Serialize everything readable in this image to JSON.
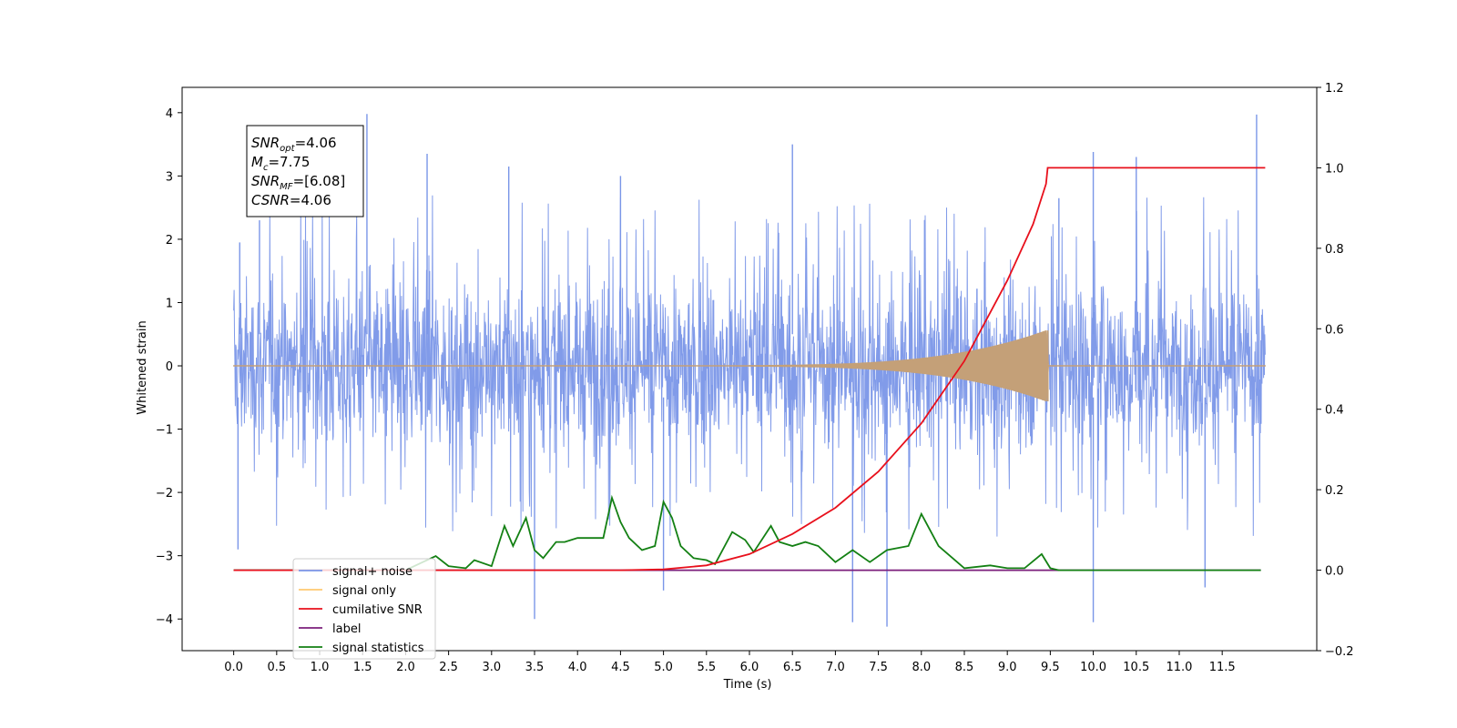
{
  "chart_data": {
    "type": "line",
    "xlabel": "Time (s)",
    "ylabel": "Whitened strain",
    "xlim": [
      -0.6,
      12.6
    ],
    "ylim": [
      -4.5,
      4.4
    ],
    "y2lim": [
      -0.2,
      1.2
    ],
    "x_ticks": [
      0.0,
      0.5,
      1.0,
      1.5,
      2.0,
      2.5,
      3.0,
      3.5,
      4.0,
      4.5,
      5.0,
      5.5,
      6.0,
      6.5,
      7.0,
      7.5,
      8.0,
      8.5,
      9.0,
      9.5,
      10.0,
      10.5,
      11.0,
      11.5
    ],
    "x_tick_labels": [
      "0.0",
      "0.5",
      "1.0",
      "1.5",
      "2.0",
      "2.5",
      "3.0",
      "3.5",
      "4.0",
      "4.5",
      "5.0",
      "5.5",
      "6.0",
      "6.5",
      "7.0",
      "7.5",
      "8.0",
      "8.5",
      "9.0",
      "9.5",
      "10.0",
      "10.5",
      "11.0",
      "11.5"
    ],
    "y_ticks": [
      4,
      3,
      2,
      1,
      0,
      -1,
      -2,
      -3,
      -4
    ],
    "y_tick_labels": [
      "4",
      "3",
      "2",
      "1",
      "0",
      "−1",
      "−2",
      "−3",
      "−4"
    ],
    "y2_ticks": [
      1.2,
      1.0,
      0.8,
      0.6,
      0.4,
      0.2,
      0.0,
      -0.2
    ],
    "y2_tick_labels": [
      "1.2",
      "1.0",
      "0.8",
      "0.6",
      "0.4",
      "0.2",
      "0.0",
      "−0.2"
    ],
    "grid": false,
    "legend_position": "lower-left",
    "annotation": {
      "lines": [
        {
          "sym": "SNR",
          "sub": "opt",
          "value": "=4.06"
        },
        {
          "sym": "M",
          "sub": "c",
          "value": "=7.75"
        },
        {
          "sym": "SNR",
          "sub": "MF",
          "value": "=[6.08]"
        },
        {
          "sym": "CSNR",
          "sub": "",
          "value": "=4.06"
        }
      ]
    },
    "series": [
      {
        "name": "signal+ noise",
        "color": "#7a96e8",
        "axis": "left",
        "x_range": [
          0.0,
          12.0
        ],
        "typical_envelope": [
          -1.5,
          1.5
        ],
        "peaks_up": [
          [
            0.07,
            1.95
          ],
          [
            0.3,
            2.3
          ],
          [
            1.55,
            3.98
          ],
          [
            2.25,
            3.35
          ],
          [
            3.2,
            3.15
          ],
          [
            4.5,
            3.0
          ],
          [
            6.5,
            3.5
          ],
          [
            9.6,
            2.65
          ],
          [
            10.0,
            3.38
          ],
          [
            10.5,
            3.3
          ],
          [
            11.9,
            3.97
          ]
        ],
        "peaks_down": [
          [
            0.05,
            -2.9
          ],
          [
            3.5,
            -4.0
          ],
          [
            5.0,
            -3.55
          ],
          [
            7.2,
            -4.05
          ],
          [
            7.6,
            -4.12
          ],
          [
            10.0,
            -4.05
          ],
          [
            11.3,
            -3.5
          ]
        ]
      },
      {
        "name": "signal only",
        "color": "#c4a078",
        "axis": "left",
        "chirp_start": 5.0,
        "chirp_end": 9.47,
        "peak_amplitude": 0.56,
        "end_time": 12.0
      },
      {
        "name": "cumilative SNR",
        "color": "#e8101c",
        "axis": "right",
        "points": [
          [
            0.0,
            0.0
          ],
          [
            4.5,
            0.0
          ],
          [
            5.0,
            0.002
          ],
          [
            5.5,
            0.012
          ],
          [
            6.0,
            0.04
          ],
          [
            6.5,
            0.09
          ],
          [
            7.0,
            0.155
          ],
          [
            7.5,
            0.245
          ],
          [
            8.0,
            0.365
          ],
          [
            8.5,
            0.52
          ],
          [
            9.0,
            0.72
          ],
          [
            9.3,
            0.86
          ],
          [
            9.45,
            0.96
          ],
          [
            9.47,
            1.0
          ],
          [
            12.0,
            1.0
          ]
        ]
      },
      {
        "name": "label",
        "color": "#7b1f7b",
        "axis": "right",
        "points": [
          [
            0.0,
            0.0
          ],
          [
            11.95,
            0.0
          ]
        ]
      },
      {
        "name": "signal statistics",
        "color": "#138013",
        "axis": "right",
        "points": [
          [
            0.0,
            0.0
          ],
          [
            2.0,
            0.0
          ],
          [
            2.2,
            0.02
          ],
          [
            2.35,
            0.035
          ],
          [
            2.5,
            0.01
          ],
          [
            2.7,
            0.005
          ],
          [
            2.8,
            0.025
          ],
          [
            3.0,
            0.01
          ],
          [
            3.15,
            0.11
          ],
          [
            3.25,
            0.06
          ],
          [
            3.4,
            0.13
          ],
          [
            3.5,
            0.05
          ],
          [
            3.6,
            0.03
          ],
          [
            3.75,
            0.07
          ],
          [
            3.85,
            0.07
          ],
          [
            4.0,
            0.08
          ],
          [
            4.15,
            0.08
          ],
          [
            4.3,
            0.08
          ],
          [
            4.4,
            0.18
          ],
          [
            4.5,
            0.12
          ],
          [
            4.6,
            0.08
          ],
          [
            4.75,
            0.05
          ],
          [
            4.9,
            0.06
          ],
          [
            5.0,
            0.17
          ],
          [
            5.1,
            0.13
          ],
          [
            5.2,
            0.06
          ],
          [
            5.35,
            0.03
          ],
          [
            5.5,
            0.025
          ],
          [
            5.6,
            0.015
          ],
          [
            5.8,
            0.095
          ],
          [
            5.95,
            0.075
          ],
          [
            6.05,
            0.045
          ],
          [
            6.25,
            0.11
          ],
          [
            6.35,
            0.07
          ],
          [
            6.5,
            0.06
          ],
          [
            6.65,
            0.07
          ],
          [
            6.8,
            0.06
          ],
          [
            7.0,
            0.02
          ],
          [
            7.2,
            0.05
          ],
          [
            7.4,
            0.02
          ],
          [
            7.6,
            0.05
          ],
          [
            7.85,
            0.06
          ],
          [
            8.0,
            0.14
          ],
          [
            8.2,
            0.06
          ],
          [
            8.5,
            0.005
          ],
          [
            8.8,
            0.012
          ],
          [
            9.0,
            0.005
          ],
          [
            9.2,
            0.005
          ],
          [
            9.4,
            0.04
          ],
          [
            9.5,
            0.005
          ],
          [
            9.6,
            0.0
          ],
          [
            11.95,
            0.0
          ]
        ]
      }
    ]
  }
}
